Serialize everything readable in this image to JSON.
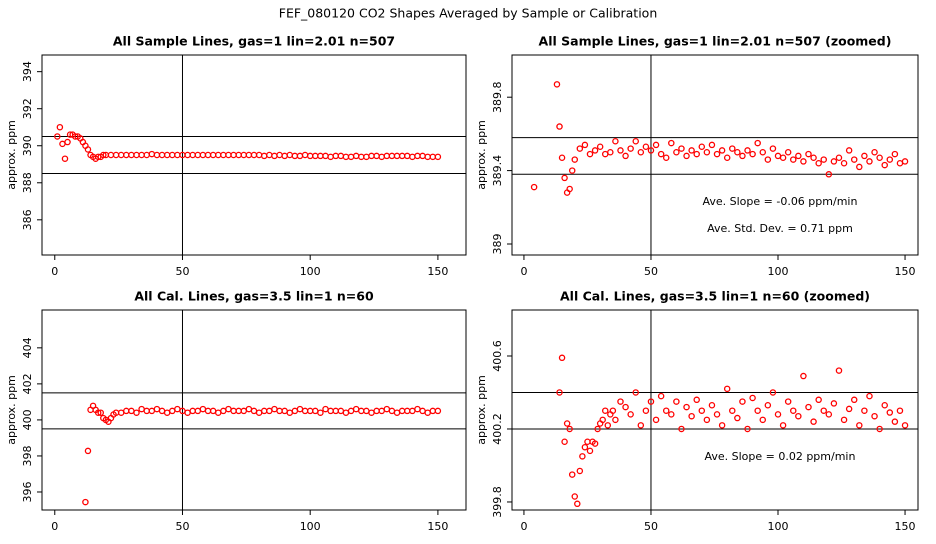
{
  "title": "FEF_080120  CO2 Shapes Averaged by Sample or Calibration",
  "chart_data": [
    {
      "type": "scatter",
      "title": "All Sample Lines, gas=1 lin=2.01 n=507",
      "y_label": "approx. ppm",
      "color": "#ff0000",
      "xlim": [
        -5,
        161
      ],
      "ylim": [
        384.1,
        394.9
      ],
      "xticks": [
        0,
        50,
        100,
        150
      ],
      "yticks": [
        386,
        388,
        390,
        392,
        394
      ],
      "hlines": [
        390.5,
        388.5
      ],
      "vline": 50,
      "x": [
        1,
        2,
        3,
        4,
        5,
        6,
        7,
        8,
        9,
        10,
        11,
        12,
        13,
        14,
        15,
        16,
        17,
        18,
        19,
        20,
        22,
        24,
        26,
        28,
        30,
        32,
        34,
        36,
        38,
        40,
        42,
        44,
        46,
        48,
        50,
        52,
        54,
        56,
        58,
        60,
        62,
        64,
        66,
        68,
        70,
        72,
        74,
        76,
        78,
        80,
        82,
        84,
        86,
        88,
        90,
        92,
        94,
        96,
        98,
        100,
        102,
        104,
        106,
        108,
        110,
        112,
        114,
        116,
        118,
        120,
        122,
        124,
        126,
        128,
        130,
        132,
        134,
        136,
        138,
        140,
        142,
        144,
        146,
        148,
        150
      ],
      "values": [
        390.5,
        391.0,
        390.1,
        389.3,
        390.2,
        390.6,
        390.6,
        390.5,
        390.5,
        390.4,
        390.2,
        390.0,
        389.8,
        389.5,
        389.4,
        389.3,
        389.4,
        389.4,
        389.5,
        389.5,
        389.5,
        389.5,
        389.5,
        389.5,
        389.5,
        389.5,
        389.5,
        389.5,
        389.55,
        389.5,
        389.5,
        389.5,
        389.5,
        389.5,
        389.5,
        389.5,
        389.5,
        389.5,
        389.5,
        389.5,
        389.5,
        389.5,
        389.5,
        389.5,
        389.5,
        389.5,
        389.5,
        389.5,
        389.5,
        389.5,
        389.45,
        389.5,
        389.45,
        389.5,
        389.45,
        389.5,
        389.45,
        389.45,
        389.5,
        389.45,
        389.45,
        389.45,
        389.45,
        389.4,
        389.45,
        389.45,
        389.4,
        389.4,
        389.45,
        389.4,
        389.4,
        389.45,
        389.45,
        389.4,
        389.45,
        389.45,
        389.45,
        389.45,
        389.45,
        389.4,
        389.45,
        389.45,
        389.4,
        389.4,
        389.4
      ]
    },
    {
      "type": "scatter",
      "title": "All Sample Lines, gas=1 lin=2.01 n=507 (zoomed)",
      "y_label": "approx. ppm",
      "color": "#ff0000",
      "xlim": [
        -4.7,
        155.1
      ],
      "ylim": [
        388.94,
        390.03
      ],
      "xticks": [
        0,
        50,
        100,
        150
      ],
      "yticks": [
        389.0,
        389.4,
        389.8
      ],
      "hlines": [
        389.58,
        389.38
      ],
      "vline": 50,
      "annotations": [
        "Ave. Slope =  -0.06  ppm/min",
        "Ave. Std. Dev. =  0.71  ppm"
      ],
      "x": [
        4,
        13,
        14,
        15,
        16,
        17,
        18,
        19,
        20,
        22,
        24,
        26,
        28,
        30,
        32,
        34,
        36,
        38,
        40,
        42,
        44,
        46,
        48,
        50,
        52,
        54,
        56,
        58,
        60,
        62,
        64,
        66,
        68,
        70,
        72,
        74,
        76,
        78,
        80,
        82,
        84,
        86,
        88,
        90,
        92,
        94,
        96,
        98,
        100,
        102,
        104,
        106,
        108,
        110,
        112,
        114,
        116,
        118,
        120,
        122,
        124,
        126,
        128,
        130,
        132,
        134,
        136,
        138,
        140,
        142,
        144,
        146,
        148,
        150
      ],
      "values": [
        389.31,
        389.87,
        389.64,
        389.47,
        389.36,
        389.28,
        389.3,
        389.4,
        389.46,
        389.52,
        389.54,
        389.49,
        389.51,
        389.53,
        389.49,
        389.5,
        389.56,
        389.51,
        389.48,
        389.52,
        389.56,
        389.5,
        389.53,
        389.51,
        389.54,
        389.49,
        389.47,
        389.55,
        389.5,
        389.52,
        389.48,
        389.51,
        389.49,
        389.53,
        389.5,
        389.54,
        389.49,
        389.51,
        389.47,
        389.52,
        389.5,
        389.48,
        389.51,
        389.49,
        389.55,
        389.5,
        389.46,
        389.52,
        389.48,
        389.47,
        389.5,
        389.46,
        389.48,
        389.45,
        389.49,
        389.47,
        389.44,
        389.46,
        389.38,
        389.45,
        389.47,
        389.44,
        389.51,
        389.46,
        389.42,
        389.48,
        389.45,
        389.5,
        389.47,
        389.43,
        389.46,
        389.49,
        389.44,
        389.45
      ]
    },
    {
      "type": "scatter",
      "title": "All Cal. Lines, gas=3.5 lin=1 n=60",
      "y_label": "approx. ppm",
      "color": "#ff0000",
      "xlim": [
        -5,
        161
      ],
      "ylim": [
        395.0,
        406.1
      ],
      "xticks": [
        0,
        50,
        100,
        150
      ],
      "yticks": [
        396,
        398,
        400,
        402,
        404
      ],
      "hlines": [
        401.5,
        399.5
      ],
      "vline": 50,
      "x": [
        12,
        13,
        14,
        15,
        16,
        17,
        18,
        19,
        20,
        21,
        22,
        23,
        24,
        26,
        28,
        30,
        32,
        34,
        36,
        38,
        40,
        42,
        44,
        46,
        48,
        50,
        52,
        54,
        56,
        58,
        60,
        62,
        64,
        66,
        68,
        70,
        72,
        74,
        76,
        78,
        80,
        82,
        84,
        86,
        88,
        90,
        92,
        94,
        96,
        98,
        100,
        102,
        104,
        106,
        108,
        110,
        112,
        114,
        116,
        118,
        120,
        122,
        124,
        126,
        128,
        130,
        132,
        134,
        136,
        138,
        140,
        142,
        144,
        146,
        148,
        150
      ],
      "values": [
        395.44,
        398.28,
        400.56,
        400.78,
        400.56,
        400.4,
        400.4,
        400.1,
        400.0,
        399.9,
        400.1,
        400.3,
        400.4,
        400.4,
        400.5,
        400.5,
        400.4,
        400.6,
        400.5,
        400.5,
        400.6,
        400.5,
        400.4,
        400.5,
        400.6,
        400.5,
        400.4,
        400.5,
        400.5,
        400.6,
        400.5,
        400.5,
        400.4,
        400.5,
        400.6,
        400.5,
        400.5,
        400.5,
        400.6,
        400.5,
        400.4,
        400.5,
        400.5,
        400.6,
        400.5,
        400.5,
        400.4,
        400.5,
        400.6,
        400.5,
        400.5,
        400.5,
        400.4,
        400.6,
        400.5,
        400.5,
        400.5,
        400.4,
        400.5,
        400.6,
        400.5,
        400.5,
        400.4,
        400.5,
        400.5,
        400.6,
        400.5,
        400.4,
        400.5,
        400.5,
        400.5,
        400.6,
        400.5,
        400.4,
        400.5,
        400.5
      ]
    },
    {
      "type": "scatter",
      "title": "All Cal. Lines, gas=3.5 lin=1 n=60 (zoomed)",
      "y_label": "approx. ppm",
      "color": "#ff0000",
      "xlim": [
        -4.7,
        155.1
      ],
      "ylim": [
        399.756,
        400.852
      ],
      "xticks": [
        0,
        50,
        100,
        150
      ],
      "yticks": [
        399.8,
        400.2,
        400.6
      ],
      "hlines": [
        400.4,
        400.2
      ],
      "vline": 50,
      "annotations": [
        "Ave. Slope =  0.02  ppm/min"
      ],
      "x": [
        14,
        15,
        16,
        17,
        18,
        19,
        20,
        21,
        22,
        23,
        24,
        25,
        26,
        27,
        28,
        29,
        30,
        31,
        32,
        33,
        34,
        35,
        36,
        38,
        40,
        42,
        44,
        46,
        48,
        50,
        52,
        54,
        56,
        58,
        60,
        62,
        64,
        66,
        68,
        70,
        72,
        74,
        76,
        78,
        80,
        82,
        84,
        86,
        88,
        90,
        92,
        94,
        96,
        98,
        100,
        102,
        104,
        106,
        108,
        110,
        112,
        114,
        116,
        118,
        120,
        122,
        124,
        126,
        128,
        130,
        132,
        134,
        136,
        138,
        140,
        142,
        144,
        146,
        148,
        150
      ],
      "values": [
        400.4,
        400.59,
        400.13,
        400.23,
        400.2,
        399.95,
        399.83,
        399.79,
        399.97,
        400.05,
        400.1,
        400.13,
        400.08,
        400.13,
        400.12,
        400.2,
        400.23,
        400.25,
        400.3,
        400.22,
        400.28,
        400.3,
        400.25,
        400.35,
        400.32,
        400.28,
        400.4,
        400.22,
        400.3,
        400.35,
        400.25,
        400.38,
        400.3,
        400.28,
        400.35,
        400.2,
        400.32,
        400.27,
        400.36,
        400.3,
        400.25,
        400.33,
        400.28,
        400.22,
        400.42,
        400.3,
        400.26,
        400.35,
        400.2,
        400.37,
        400.3,
        400.25,
        400.33,
        400.4,
        400.28,
        400.22,
        400.35,
        400.3,
        400.27,
        400.49,
        400.32,
        400.24,
        400.36,
        400.3,
        400.28,
        400.34,
        400.52,
        400.25,
        400.31,
        400.36,
        400.22,
        400.3,
        400.38,
        400.27,
        400.2,
        400.33,
        400.29,
        400.24,
        400.3,
        400.22
      ]
    }
  ]
}
